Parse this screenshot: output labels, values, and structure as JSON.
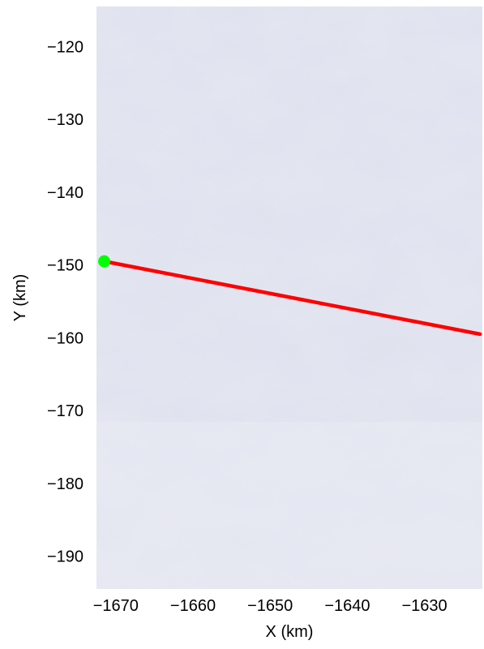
{
  "chart_data": {
    "type": "map",
    "xlabel": "X (km)",
    "ylabel": "Y (km)",
    "xlim": [
      -1672.5,
      -1622.5
    ],
    "ylim": [
      -194.5,
      -114.5
    ],
    "x_ticks": [
      -1670,
      -1660,
      -1650,
      -1640,
      -1630
    ],
    "x_tick_labels": [
      "−1670",
      "−1660",
      "−1650",
      "−1640",
      "−1630"
    ],
    "y_ticks": [
      -120,
      -130,
      -140,
      -150,
      -160,
      -170,
      -180,
      -190
    ],
    "y_tick_labels": [
      "−120",
      "−130",
      "−140",
      "−150",
      "−160",
      "−170",
      "−180",
      "−190"
    ],
    "background": "satellite imagery of ice sheet surface",
    "grid": false,
    "series": [
      {
        "kind": "line",
        "color": "#ff0000",
        "x": [
          -1671.5,
          -1622.8
        ],
        "y": [
          -149.5,
          -159.5
        ]
      }
    ],
    "markers": [
      {
        "color": "#00ff00",
        "shape": "circle",
        "x": -1671.5,
        "y": -149.5
      }
    ]
  }
}
